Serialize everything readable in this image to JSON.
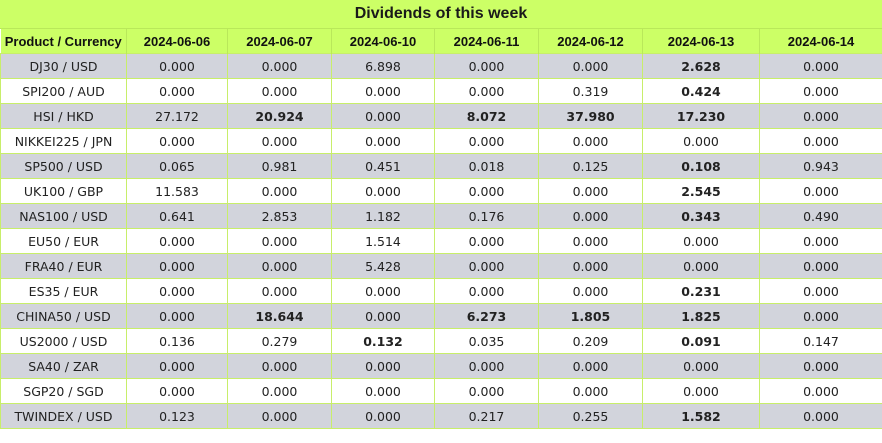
{
  "title": "Dividends of this week",
  "header": [
    "Product / Currency",
    "2024-06-06",
    "2024-06-07",
    "2024-06-10",
    "2024-06-11",
    "2024-06-12",
    "2024-06-13",
    "2024-06-14"
  ],
  "rows": [
    {
      "product": "DJ30 / USD",
      "values": [
        "0.000",
        "0.000",
        "6.898",
        "0.000",
        "0.000",
        "2.628",
        "0.000"
      ],
      "bold": [
        false,
        false,
        false,
        false,
        false,
        true,
        false
      ]
    },
    {
      "product": "SPI200 / AUD",
      "values": [
        "0.000",
        "0.000",
        "0.000",
        "0.000",
        "0.319",
        "0.424",
        "0.000"
      ],
      "bold": [
        false,
        false,
        false,
        false,
        false,
        true,
        false
      ]
    },
    {
      "product": "HSI / HKD",
      "values": [
        "27.172",
        "20.924",
        "0.000",
        "8.072",
        "37.980",
        "17.230",
        "0.000"
      ],
      "bold": [
        false,
        true,
        false,
        true,
        true,
        true,
        false
      ]
    },
    {
      "product": "NIKKEI225 / JPN",
      "values": [
        "0.000",
        "0.000",
        "0.000",
        "0.000",
        "0.000",
        "0.000",
        "0.000"
      ],
      "bold": [
        false,
        false,
        false,
        false,
        false,
        false,
        false
      ]
    },
    {
      "product": "SP500 / USD",
      "values": [
        "0.065",
        "0.981",
        "0.451",
        "0.018",
        "0.125",
        "0.108",
        "0.943"
      ],
      "bold": [
        false,
        false,
        false,
        false,
        false,
        true,
        false
      ]
    },
    {
      "product": "UK100 / GBP",
      "values": [
        "11.583",
        "0.000",
        "0.000",
        "0.000",
        "0.000",
        "2.545",
        "0.000"
      ],
      "bold": [
        false,
        false,
        false,
        false,
        false,
        true,
        false
      ]
    },
    {
      "product": "NAS100 / USD",
      "values": [
        "0.641",
        "2.853",
        "1.182",
        "0.176",
        "0.000",
        "0.343",
        "0.490"
      ],
      "bold": [
        false,
        false,
        false,
        false,
        false,
        true,
        false
      ]
    },
    {
      "product": "EU50 / EUR",
      "values": [
        "0.000",
        "0.000",
        "1.514",
        "0.000",
        "0.000",
        "0.000",
        "0.000"
      ],
      "bold": [
        false,
        false,
        false,
        false,
        false,
        false,
        false
      ]
    },
    {
      "product": "FRA40 / EUR",
      "values": [
        "0.000",
        "0.000",
        "5.428",
        "0.000",
        "0.000",
        "0.000",
        "0.000"
      ],
      "bold": [
        false,
        false,
        false,
        false,
        false,
        false,
        false
      ]
    },
    {
      "product": "ES35 / EUR",
      "values": [
        "0.000",
        "0.000",
        "0.000",
        "0.000",
        "0.000",
        "0.231",
        "0.000"
      ],
      "bold": [
        false,
        false,
        false,
        false,
        false,
        true,
        false
      ]
    },
    {
      "product": "CHINA50 / USD",
      "values": [
        "0.000",
        "18.644",
        "0.000",
        "6.273",
        "1.805",
        "1.825",
        "0.000"
      ],
      "bold": [
        false,
        true,
        false,
        true,
        true,
        true,
        false
      ]
    },
    {
      "product": "US2000 / USD",
      "values": [
        "0.136",
        "0.279",
        "0.132",
        "0.035",
        "0.209",
        "0.091",
        "0.147"
      ],
      "bold": [
        false,
        false,
        true,
        false,
        false,
        true,
        false
      ]
    },
    {
      "product": "SA40 / ZAR",
      "values": [
        "0.000",
        "0.000",
        "0.000",
        "0.000",
        "0.000",
        "0.000",
        "0.000"
      ],
      "bold": [
        false,
        false,
        false,
        false,
        false,
        false,
        false
      ]
    },
    {
      "product": "SGP20 / SGD",
      "values": [
        "0.000",
        "0.000",
        "0.000",
        "0.000",
        "0.000",
        "0.000",
        "0.000"
      ],
      "bold": [
        false,
        false,
        false,
        false,
        false,
        false,
        false
      ]
    },
    {
      "product": "TWINDEX / USD",
      "values": [
        "0.123",
        "0.000",
        "0.000",
        "0.217",
        "0.255",
        "1.582",
        "0.000"
      ],
      "bold": [
        false,
        false,
        false,
        false,
        false,
        true,
        false
      ]
    }
  ],
  "colors": {
    "header_bg": "#ccff66",
    "row_alt_bg": "#d2d4dc",
    "row_bg": "#ffffff",
    "grid": "#c8ee6a"
  }
}
